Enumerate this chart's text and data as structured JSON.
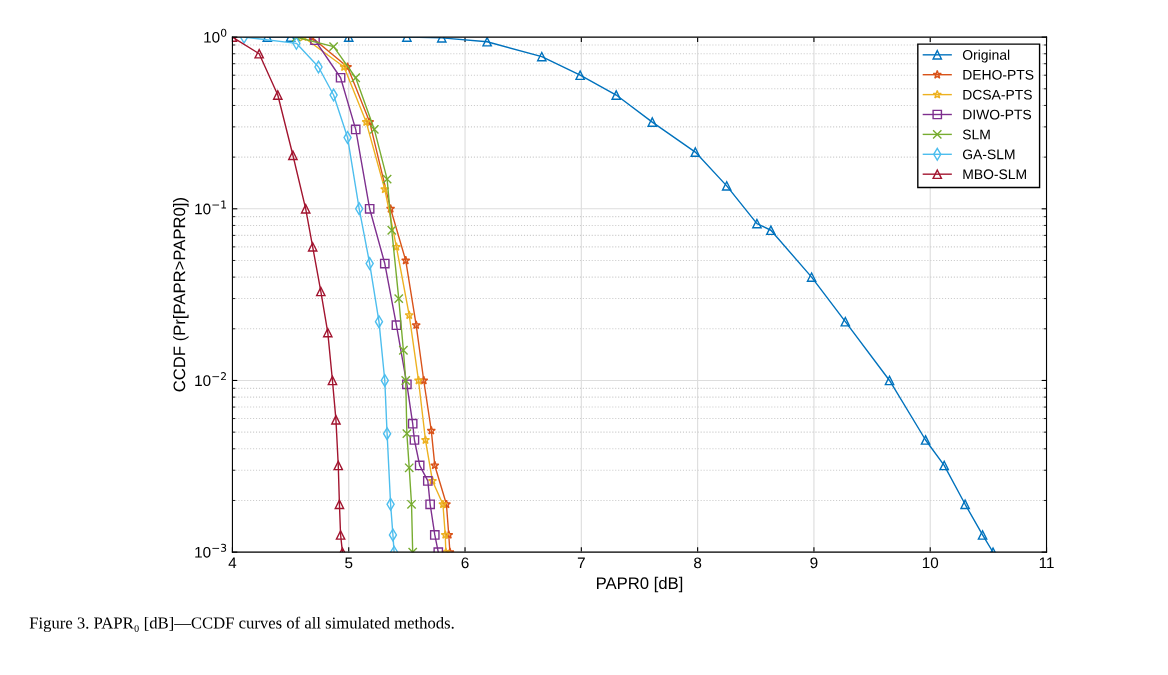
{
  "chart_data": {
    "type": "line",
    "xlabel": "PAPR0 [dB]",
    "ylabel": "CCDF (Pr[PAPR>PAPR0])",
    "log": "y",
    "grid": true,
    "legend": "top right",
    "line_style": "solid",
    "xlim": [
      4,
      11
    ],
    "xticks": [
      4,
      5,
      6,
      7,
      8,
      9,
      10,
      11
    ],
    "ylim": [
      0.001,
      1
    ],
    "yticks": [
      {
        "value": 0.001,
        "label": "10$^{−3}$"
      },
      {
        "value": 0.01,
        "label": "10$^{−2}$"
      },
      {
        "value": 0.1,
        "label": "10$^{−1}$"
      },
      {
        "value": 1,
        "label": "10$^{0}$"
      }
    ],
    "annotations": [
      "Figure 3. PAPR₀ [dB]—CCDF curves of all simulated methods."
    ],
    "series": [
      {
        "name": "Original",
        "color": "#0072bd",
        "marker": "triangle",
        "x": [
          4.3,
          4.5,
          5,
          5.5,
          5.8,
          6.19,
          6.66,
          6.99,
          7.3,
          7.61,
          7.98,
          8.25,
          8.51,
          8.63,
          8.98,
          9.27,
          9.65,
          9.96,
          10.12,
          10.3,
          10.45,
          10.54
        ],
        "values": [
          1,
          1,
          1,
          1,
          0.99,
          0.94,
          0.77,
          0.6,
          0.46,
          0.32,
          0.214,
          0.136,
          0.082,
          0.075,
          0.04,
          0.022,
          0.01,
          0.0045,
          0.0032,
          0.0019,
          0.00126,
          0.001
        ]
      },
      {
        "name": "DEHO-PTS",
        "color": "#d95319",
        "marker": "star",
        "x": [
          4.68,
          4.99,
          5.18,
          5.36,
          5.49,
          5.58,
          5.645,
          5.71,
          5.74,
          5.84,
          5.86,
          5.87
        ],
        "values": [
          1,
          0.67,
          0.32,
          0.1,
          0.05,
          0.021,
          0.01,
          0.0051,
          0.0032,
          0.0019,
          0.00126,
          0.001
        ]
      },
      {
        "name": "DCSA-PTS",
        "color": "#edb120",
        "marker": "star",
        "x": [
          4.61,
          4.96,
          5.15,
          5.31,
          5.41,
          5.52,
          5.6,
          5.66,
          5.72,
          5.81,
          5.83,
          5.835
        ],
        "values": [
          1,
          0.67,
          0.32,
          0.13,
          0.06,
          0.024,
          0.01,
          0.0045,
          0.0026,
          0.0019,
          0.00126,
          0.001
        ]
      },
      {
        "name": "DIWO-PTS",
        "color": "#7e2f8e",
        "marker": "square",
        "x": [
          4.71,
          4.93,
          5.06,
          5.18,
          5.31,
          5.41,
          5.5,
          5.55,
          5.565,
          5.61,
          5.68,
          5.7,
          5.74,
          5.77
        ],
        "values": [
          0.96,
          0.58,
          0.29,
          0.1,
          0.048,
          0.021,
          0.0095,
          0.0056,
          0.0045,
          0.0032,
          0.0026,
          0.0019,
          0.00126,
          0.001
        ]
      },
      {
        "name": "SLM",
        "color": "#77ac30",
        "marker": "cross",
        "x": [
          4.55,
          4.87,
          5.06,
          5.22,
          5.33,
          5.37,
          5.43,
          5.47,
          5.49,
          5.5,
          5.52,
          5.54,
          5.55
        ],
        "values": [
          1,
          0.88,
          0.58,
          0.29,
          0.149,
          0.075,
          0.03,
          0.015,
          0.01,
          0.0049,
          0.0031,
          0.0019,
          0.001
        ]
      },
      {
        "name": "GA-SLM",
        "color": "#4dbeee",
        "marker": "diamond",
        "x": [
          4.1,
          4.55,
          4.74,
          4.87,
          4.99,
          5.09,
          5.18,
          5.26,
          5.31,
          5.33,
          5.36,
          5.38,
          5.39
        ],
        "values": [
          1,
          0.92,
          0.67,
          0.46,
          0.26,
          0.1,
          0.048,
          0.022,
          0.01,
          0.0049,
          0.0019,
          0.00126,
          0.001
        ]
      },
      {
        "name": "MBO-SLM",
        "color": "#a2142f",
        "marker": "triangle",
        "x": [
          4,
          4.23,
          4.39,
          4.52,
          4.63,
          4.69,
          4.76,
          4.82,
          4.86,
          4.89,
          4.91,
          4.92,
          4.93,
          4.946
        ],
        "values": [
          1,
          0.8,
          0.46,
          0.205,
          0.1,
          0.06,
          0.033,
          0.019,
          0.01,
          0.0059,
          0.0032,
          0.0019,
          0.00126,
          0.001
        ]
      }
    ]
  }
}
